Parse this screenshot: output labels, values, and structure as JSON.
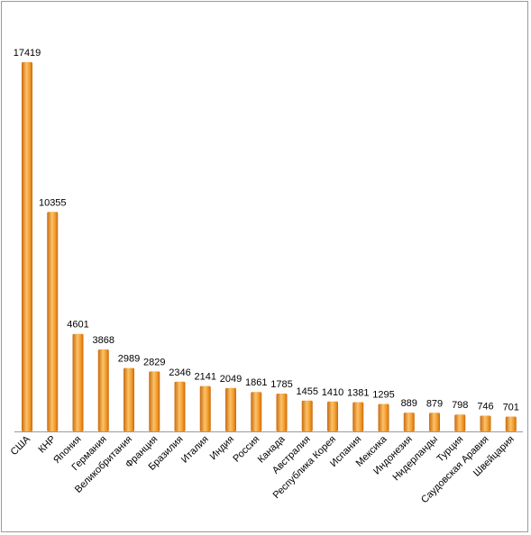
{
  "chart_data": {
    "type": "bar",
    "title": "",
    "xlabel": "",
    "ylabel": "",
    "categories": [
      "США",
      "КНР",
      "Япония",
      "Германия",
      "Великобритания",
      "Франция",
      "Бразилия",
      "Италия",
      "Индия",
      "Россия",
      "Канада",
      "Австралия",
      "Республика Корея",
      "Испания",
      "Мексика",
      "Индонезия",
      "Нидерланды",
      "Турция",
      "Саудовская Аравия",
      "Швейцария"
    ],
    "values": [
      17419,
      10355,
      4601,
      3868,
      2989,
      2829,
      2346,
      2141,
      2049,
      1861,
      1785,
      1455,
      1410,
      1381,
      1295,
      889,
      879,
      798,
      746,
      701
    ],
    "ylim": [
      0,
      17419
    ],
    "grid": false,
    "legend": "none",
    "colors": {
      "bar_light": "#fbc26a",
      "bar_mid": "#f39a2a",
      "bar_dark": "#c96a0c",
      "axis": "#9a9a9a"
    }
  }
}
